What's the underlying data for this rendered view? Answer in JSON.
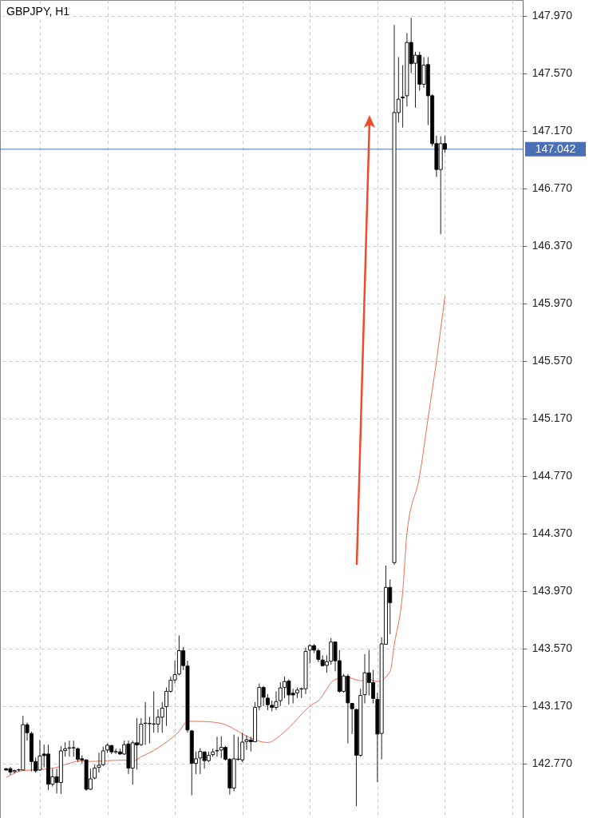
{
  "chart_data": {
    "type": "candlestick",
    "title": "GBPJPY, H1",
    "categories": [
      null,
      null,
      null,
      null,
      null,
      null,
      null,
      null,
      null,
      null,
      null,
      null,
      null,
      null,
      null,
      null,
      null,
      null,
      null,
      null,
      null,
      null,
      null,
      null,
      null,
      null,
      null,
      null,
      null,
      null,
      null,
      null,
      null,
      null,
      null,
      null,
      null,
      null,
      null,
      null,
      null,
      null,
      null,
      null,
      null,
      null,
      null,
      null,
      null,
      null,
      null,
      null,
      null,
      null,
      null,
      null,
      null,
      null,
      null,
      null,
      null,
      null,
      null,
      null,
      null,
      null,
      null,
      null,
      null,
      null,
      null,
      null,
      null,
      null,
      null,
      null,
      null,
      null,
      null,
      null,
      null,
      null,
      null,
      null,
      null,
      null,
      null,
      null,
      null,
      null,
      null,
      null,
      null,
      null,
      null,
      null,
      null,
      null,
      null,
      null,
      null,
      null,
      null,
      null,
      null,
      null,
      null,
      null,
      null,
      null,
      null,
      null,
      null,
      null,
      null,
      null,
      null,
      null,
      null,
      null,
      null,
      null
    ],
    "ohlc": [
      [
        142.733,
        142.738,
        142.718,
        142.724
      ],
      [
        142.733,
        142.746,
        142.69,
        142.709
      ],
      [
        142.713,
        142.727,
        142.701,
        142.72
      ],
      [
        142.724,
        142.733,
        142.714,
        142.726
      ],
      [
        142.724,
        143.1,
        142.72,
        143.039
      ],
      [
        143.039,
        143.054,
        142.928,
        142.983
      ],
      [
        142.978,
        142.992,
        142.714,
        142.783
      ],
      [
        142.783,
        142.811,
        142.705,
        142.718
      ],
      [
        142.724,
        142.933,
        142.718,
        142.822
      ],
      [
        142.835,
        142.9,
        142.742,
        142.824
      ],
      [
        142.835,
        142.9,
        142.585,
        142.625
      ],
      [
        142.625,
        142.733,
        142.609,
        142.677
      ],
      [
        142.677,
        142.733,
        142.56,
        142.637
      ],
      [
        142.637,
        142.891,
        142.557,
        142.857
      ],
      [
        142.859,
        142.918,
        142.816,
        142.872
      ],
      [
        142.876,
        142.928,
        142.816,
        142.878
      ],
      [
        142.878,
        142.928,
        142.816,
        142.879
      ],
      [
        142.872,
        142.881,
        142.779,
        142.798
      ],
      [
        142.802,
        142.826,
        142.77,
        142.794
      ],
      [
        142.794,
        142.798,
        142.579,
        142.59
      ],
      [
        142.59,
        142.733,
        142.585,
        142.662
      ],
      [
        142.668,
        142.761,
        142.659,
        142.737
      ],
      [
        142.742,
        142.844,
        142.705,
        142.757
      ],
      [
        142.761,
        142.887,
        142.751,
        142.857
      ],
      [
        142.863,
        142.909,
        142.844,
        142.896
      ],
      [
        142.894,
        142.9,
        142.835,
        142.85
      ],
      [
        142.85,
        142.872,
        142.835,
        142.852
      ],
      [
        142.85,
        142.872,
        142.831,
        142.835
      ],
      [
        142.835,
        142.928,
        142.829,
        142.9
      ],
      [
        142.905,
        142.928,
        142.696,
        142.737
      ],
      [
        142.737,
        142.928,
        142.622,
        142.913
      ],
      [
        142.913,
        143.085,
        142.727,
        142.898
      ],
      [
        142.9,
        143.085,
        142.891,
        143.043
      ],
      [
        143.048,
        143.196,
        142.9,
        143.05
      ],
      [
        143.048,
        143.094,
        142.909,
        143.046
      ],
      [
        143.043,
        143.271,
        142.983,
        143.044
      ],
      [
        143.043,
        143.146,
        142.983,
        143.091
      ],
      [
        143.091,
        143.196,
        142.983,
        143.154
      ],
      [
        143.165,
        143.298,
        143.03,
        143.271
      ],
      [
        143.271,
        143.373,
        143.261,
        143.348
      ],
      [
        143.35,
        143.484,
        143.326,
        143.387
      ],
      [
        143.391,
        143.66,
        143.382,
        143.554
      ],
      [
        143.554,
        143.58,
        143.419,
        143.45
      ],
      [
        143.447,
        143.484,
        142.983,
        143.002
      ],
      [
        142.996,
        143.002,
        142.548,
        142.77
      ],
      [
        142.77,
        142.853,
        142.696,
        142.802
      ],
      [
        142.807,
        142.876,
        142.696,
        142.853
      ],
      [
        142.85,
        142.853,
        142.733,
        142.789
      ],
      [
        142.789,
        142.853,
        142.779,
        142.826
      ],
      [
        142.831,
        142.872,
        142.816,
        142.85
      ],
      [
        142.857,
        142.955,
        142.816,
        142.859
      ],
      [
        142.863,
        142.959,
        142.807,
        142.881
      ],
      [
        142.881,
        142.891,
        142.789,
        142.798
      ],
      [
        142.798,
        142.807,
        142.553,
        142.598
      ],
      [
        142.598,
        142.97,
        142.575,
        142.802
      ],
      [
        142.798,
        142.955,
        142.789,
        142.8
      ],
      [
        142.794,
        142.983,
        142.779,
        142.918
      ],
      [
        142.922,
        142.965,
        142.863,
        142.935
      ],
      [
        142.933,
        142.955,
        142.853,
        142.92
      ],
      [
        142.92,
        143.196,
        142.918,
        143.159
      ],
      [
        143.163,
        143.326,
        143.141,
        143.298
      ],
      [
        143.298,
        143.308,
        143.169,
        143.23
      ],
      [
        143.224,
        143.252,
        143.141,
        143.178
      ],
      [
        143.174,
        143.206,
        143.132,
        143.159
      ],
      [
        143.159,
        143.271,
        143.141,
        143.2
      ],
      [
        143.206,
        143.335,
        143.169,
        143.295
      ],
      [
        143.298,
        143.373,
        143.224,
        143.339
      ],
      [
        143.343,
        143.354,
        143.178,
        143.246
      ],
      [
        143.258,
        143.289,
        143.187,
        143.246
      ],
      [
        143.261,
        143.298,
        143.224,
        143.28
      ],
      [
        143.289,
        143.298,
        143.224,
        143.287
      ],
      [
        143.289,
        143.576,
        143.252,
        143.549
      ],
      [
        143.558,
        143.599,
        143.465,
        143.589
      ],
      [
        143.589,
        143.599,
        143.539,
        143.558
      ],
      [
        143.554,
        143.567,
        143.475,
        143.493
      ],
      [
        143.489,
        143.521,
        143.443,
        143.45
      ],
      [
        143.452,
        143.521,
        143.4,
        143.478
      ],
      [
        143.48,
        143.641,
        143.456,
        143.614
      ],
      [
        143.614,
        143.617,
        143.41,
        143.484
      ],
      [
        143.484,
        143.558,
        143.261,
        143.271
      ],
      [
        143.271,
        143.391,
        143.261,
        143.378
      ],
      [
        143.376,
        143.391,
        142.909,
        143.191
      ],
      [
        143.187,
        143.191,
        142.974,
        143.15
      ],
      [
        143.145,
        143.15,
        142.473,
        142.826
      ],
      [
        142.826,
        143.289,
        142.816,
        143.243
      ],
      [
        143.248,
        143.53,
        143.187,
        143.4
      ],
      [
        143.4,
        143.558,
        143.243,
        143.332
      ],
      [
        143.332,
        143.419,
        143.187,
        143.221
      ],
      [
        143.215,
        143.261,
        142.64,
        142.974
      ],
      [
        142.978,
        143.647,
        142.798,
        143.601
      ],
      [
        143.599,
        144.146,
        143.595,
        143.994
      ],
      [
        143.994,
        144.049,
        143.669,
        143.888
      ],
      [
        144.166,
        147.906,
        144.151,
        147.297
      ],
      [
        147.297,
        147.683,
        147.229,
        147.39
      ],
      [
        147.399,
        147.627,
        147.192,
        147.405
      ],
      [
        147.414,
        147.85,
        147.34,
        147.785
      ],
      [
        147.785,
        147.956,
        147.572,
        147.637
      ],
      [
        147.64,
        147.72,
        147.331,
        147.696
      ],
      [
        147.696,
        147.72,
        147.451,
        147.494
      ],
      [
        147.494,
        147.683,
        147.47,
        147.627
      ],
      [
        147.631,
        147.683,
        147.21,
        147.414
      ],
      [
        147.414,
        147.424,
        147.062,
        147.081
      ],
      [
        147.081,
        147.136,
        146.849,
        146.901
      ],
      [
        146.901,
        147.132,
        146.45,
        147.081
      ],
      [
        147.081,
        147.136,
        147.016,
        147.042
      ],
      null,
      null,
      null,
      null,
      null,
      null,
      null,
      null,
      null,
      null,
      null,
      null,
      null,
      null,
      null,
      null,
      null
    ],
    "series": [
      {
        "type": "line",
        "color": "#f26b50",
        "values": [
          142.672,
          null,
          null,
          null,
          142.72,
          null,
          null,
          null,
          142.727,
          null,
          null,
          null,
          142.742,
          null,
          142.761,
          null,
          null,
          null,
          142.789,
          null,
          142.783,
          null,
          null,
          null,
          142.789,
          null,
          null,
          null,
          142.792,
          null,
          142.783,
          null,
          142.816,
          null,
          142.844,
          null,
          null,
          null,
          142.918,
          null,
          null,
          142.992,
          null,
          143.063,
          null,
          null,
          null,
          143.061,
          null,
          143.057,
          null,
          null,
          143.039,
          null,
          null,
          142.992,
          null,
          null,
          142.946,
          null,
          null,
          null,
          142.915,
          null,
          null,
          142.965,
          null,
          null,
          143.048,
          null,
          null,
          null,
          143.169,
          null,
          143.206,
          null,
          null,
          null,
          143.354,
          null,
          null,
          143.367,
          null,
          null,
          143.345,
          null,
          143.354,
          null,
          143.339,
          null,
          null,
          143.41,
          143.595,
          null,
          143.966,
          144.37,
          null,
          null,
          144.77,
          null,
          145.17,
          null,
          145.57,
          null,
          146.02,
          null,
          null,
          null,
          null,
          null,
          null,
          null,
          null,
          null,
          null,
          null,
          null,
          null,
          null,
          null,
          null,
          null
        ]
      }
    ],
    "ylim": [
      142.39,
      148.08
    ],
    "yticks": [
      {
        "value": 142.77,
        "label": "142.770"
      },
      {
        "value": 143.17,
        "label": "143.170"
      },
      {
        "value": 143.57,
        "label": "143.570"
      },
      {
        "value": 143.97,
        "label": "143.970"
      },
      {
        "value": 144.37,
        "label": "144.370"
      },
      {
        "value": 144.77,
        "label": "144.770"
      },
      {
        "value": 145.17,
        "label": "145.170"
      },
      {
        "value": 145.57,
        "label": "145.570"
      },
      {
        "value": 145.97,
        "label": "145.970"
      },
      {
        "value": 146.37,
        "label": "146.370"
      },
      {
        "value": 146.77,
        "label": "146.770"
      },
      {
        "value": 147.17,
        "label": "147.170"
      },
      {
        "value": 147.57,
        "label": "147.570"
      },
      {
        "value": 147.97,
        "label": "147.970"
      }
    ],
    "grid": true,
    "tick_labels": "y",
    "ref_lines": [
      {
        "axis": "y",
        "value": 147.042,
        "label": "147.042",
        "color": "#4a6fb5"
      }
    ]
  }
}
